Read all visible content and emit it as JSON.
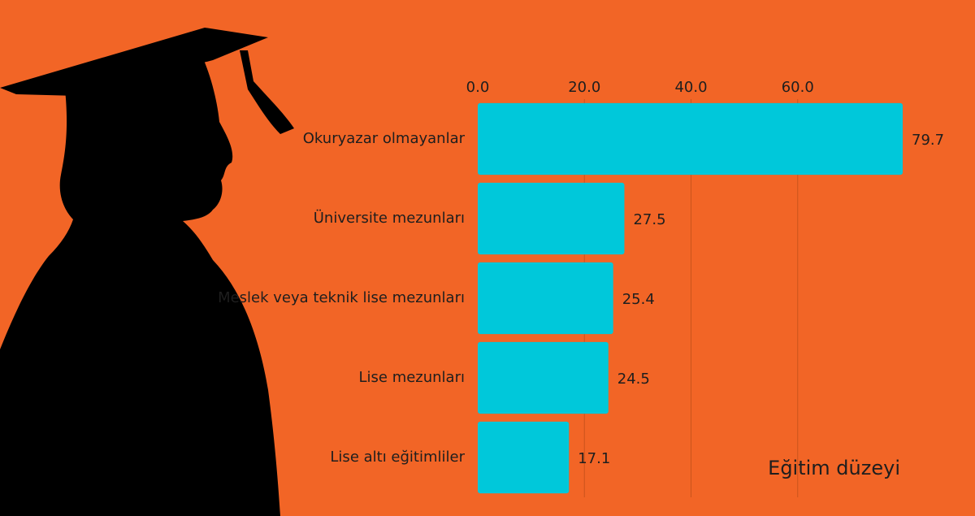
{
  "chart_data": {
    "type": "bar",
    "orientation": "horizontal",
    "ylabel": "Eğitim düzeyi",
    "categories": [
      "Okuryazar olmayanlar",
      "Üniversite mezunları",
      "Meslek veya teknik lise mezunları",
      "Lise mezunları",
      "Lise altı eğitimliler"
    ],
    "values": [
      79.7,
      27.5,
      25.4,
      24.5,
      17.1
    ],
    "color": "#00c8da",
    "xlim": [
      0,
      80
    ],
    "xticks": [
      {
        "value": 0,
        "label": "0.0"
      },
      {
        "value": 20,
        "label": "20.0"
      },
      {
        "value": 40,
        "label": "40.0"
      },
      {
        "value": 60,
        "label": "60.0"
      }
    ],
    "grid": true
  }
}
